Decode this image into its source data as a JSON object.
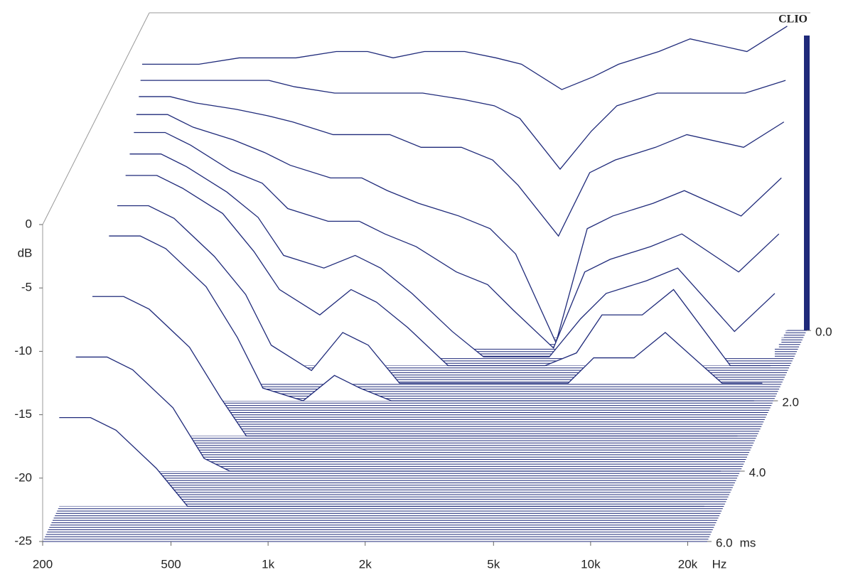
{
  "chart_data": {
    "type": "waterfall",
    "title": "CLIO",
    "x_label": "Hz",
    "y_label": "dB",
    "z_label": "ms",
    "log_x": true,
    "color": "#1f2a7a",
    "xlim": [
      200,
      23000
    ],
    "ylim": [
      -25,
      0
    ],
    "zlim": [
      0,
      6
    ],
    "xticks": [
      200,
      500,
      {
        "value": 1000,
        "label": "1k"
      },
      {
        "value": 2000,
        "label": "2k"
      },
      {
        "value": 5000,
        "label": "5k"
      },
      {
        "value": 10000,
        "label": "10k"
      },
      {
        "value": 20000,
        "label": "20k"
      }
    ],
    "yticks": [
      0,
      -5,
      -10,
      -15,
      -20,
      -25
    ],
    "zticks": [
      {
        "value": 0,
        "label": "0.0"
      },
      {
        "value": 2,
        "label": "2.0"
      },
      {
        "value": 4,
        "label": "4.0"
      },
      {
        "value": 6,
        "label": "6.0"
      }
    ],
    "x": [
      200,
      250,
      300,
      400,
      500,
      600,
      800,
      1000,
      1200,
      1500,
      2000,
      2500,
      3000,
      4000,
      5000,
      6000,
      8000,
      10000,
      15000,
      20000
    ],
    "z": [
      0,
      0.1,
      0.2,
      0.35,
      0.5,
      0.75,
      1.0,
      1.5,
      2.0,
      3.0,
      4.0,
      5.0
    ],
    "series": [
      {
        "values": [
          -4,
          -4,
          -4,
          -3.5,
          -3.5,
          -3.5,
          -3,
          -3,
          -3.5,
          -3,
          -3,
          -3.5,
          -4,
          -6,
          -5,
          -4,
          -3,
          -2,
          -3,
          -1
        ]
      },
      {
        "values": [
          -5,
          -5,
          -5,
          -5,
          -5,
          -5.5,
          -6,
          -6,
          -6,
          -6,
          -6.5,
          -7,
          -8,
          -12,
          -9,
          -7,
          -6,
          -6,
          -6,
          -5
        ]
      },
      {
        "values": [
          -6,
          -6,
          -6.5,
          -7,
          -7.5,
          -8,
          -9,
          -9,
          -9,
          -10,
          -10,
          -11,
          -13,
          -17,
          -12,
          -11,
          -10,
          -9,
          -10,
          -8
        ]
      },
      {
        "values": [
          -7,
          -7,
          -8,
          -9,
          -10,
          -11,
          -12,
          -12,
          -13,
          -14,
          -15,
          -16,
          -18,
          -25,
          -16,
          -15,
          -14,
          -13,
          -15,
          -12
        ]
      },
      {
        "values": [
          -8,
          -8,
          -9,
          -11,
          -12,
          -14,
          -15,
          -15,
          -16,
          -17,
          -19,
          -20,
          -22,
          -25,
          -19,
          -18,
          -17,
          -16,
          -19,
          -16
        ]
      },
      {
        "values": [
          -9,
          -9,
          -10,
          -12,
          -14,
          -17,
          -18,
          -17,
          -18,
          -20,
          -23,
          -25,
          -25,
          -25,
          -22,
          -20,
          -19,
          -18,
          -23,
          -20
        ]
      },
      {
        "values": [
          -10,
          -10,
          -11,
          -13,
          -16,
          -19,
          -21,
          -19,
          -20,
          -22,
          -25,
          -25,
          -25,
          -25,
          -24,
          -21,
          -21,
          -19,
          -25,
          -25
        ]
      },
      {
        "values": [
          -11,
          -11,
          -12,
          -15,
          -18,
          -22,
          -24,
          -21,
          -22,
          -25,
          -25,
          -25,
          -25,
          -25,
          -25,
          -23,
          -23,
          -21,
          -25,
          -25
        ]
      },
      {
        "values": [
          -12,
          -12,
          -13,
          -16,
          -20,
          -24,
          -25,
          -23,
          -24,
          -25,
          -25,
          -25,
          -25,
          -25,
          -25,
          -25,
          -25,
          -25,
          -25,
          -25
        ]
      },
      {
        "values": [
          -14,
          -14,
          -15,
          -18,
          -22,
          -25,
          -25,
          -25,
          -25,
          -25,
          -25,
          -25,
          -25,
          -25,
          -25,
          -25,
          -25,
          -25,
          -25,
          -25
        ]
      },
      {
        "values": [
          -16,
          -16,
          -17,
          -20,
          -24,
          -25,
          -25,
          -25,
          -25,
          -25,
          -25,
          -25,
          -25,
          -25,
          -25,
          -25,
          -25,
          -25,
          -25,
          -25
        ]
      },
      {
        "values": [
          -18,
          -18,
          -19,
          -22,
          -25,
          -25,
          -25,
          -25,
          -25,
          -25,
          -25,
          -25,
          -25,
          -25,
          -25,
          -25,
          -25,
          -25,
          -25,
          -25
        ]
      }
    ]
  }
}
